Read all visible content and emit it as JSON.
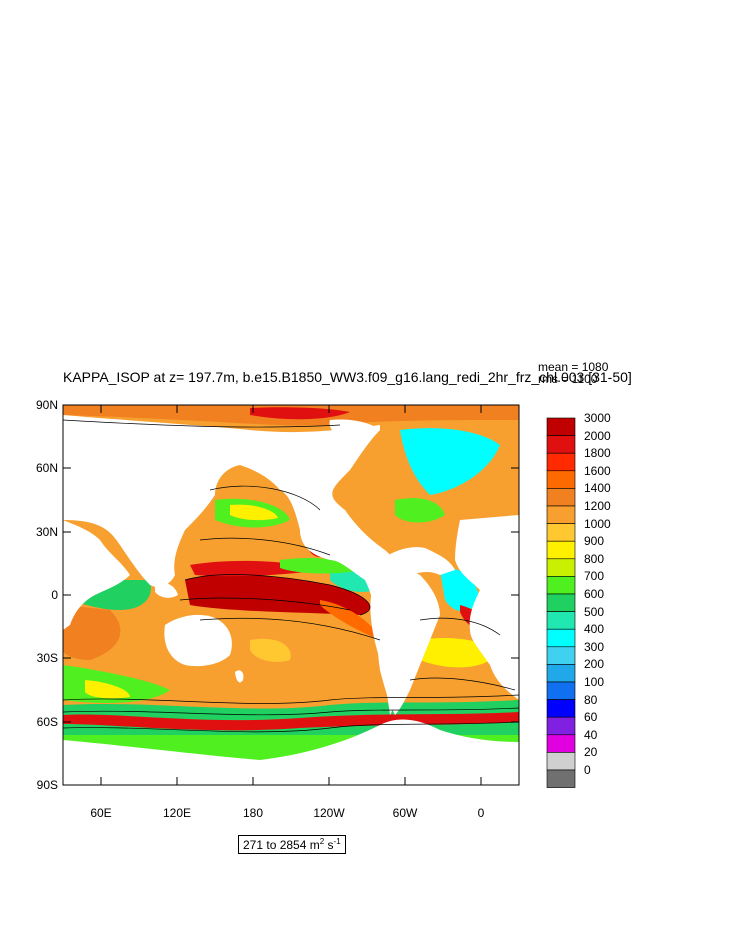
{
  "title": "KAPPA_ISOP at z= 197.7m, b.e15.B1850_WW3.f09_g16.lang_redi_2hr_frz_chl.003 [31-50]",
  "stats": {
    "mean": "mean = 1080",
    "rms": "rms = 1100"
  },
  "range": {
    "text": "271 to 2854 m",
    "unit_sup1": "2",
    "unit_mid": " s",
    "unit_sup2": "-1"
  },
  "axes": {
    "y_ticks": [
      "90N",
      "60N",
      "30N",
      "0",
      "30S",
      "60S",
      "90S"
    ],
    "x_ticks": [
      "60E",
      "120E",
      "180",
      "120W",
      "60W",
      "0"
    ]
  },
  "colorbar": {
    "labels": [
      "3000",
      "2000",
      "1800",
      "1600",
      "1400",
      "1200",
      "1000",
      "900",
      "800",
      "700",
      "600",
      "500",
      "400",
      "300",
      "200",
      "100",
      "80",
      "60",
      "40",
      "20",
      "0"
    ],
    "colors": [
      "#c00000",
      "#e01010",
      "#ff2a00",
      "#ff6a00",
      "#f08020",
      "#f7a030",
      "#ffc830",
      "#fff000",
      "#c8f000",
      "#50f020",
      "#20d060",
      "#20e8b0",
      "#00ffff",
      "#40d0f0",
      "#20a8e8",
      "#1070f0",
      "#0000ff",
      "#8020e0",
      "#e000e0",
      "#d0d0d0",
      "#707070"
    ]
  },
  "colors": {
    "land": "#ffffff",
    "ocean_base": "#f7a030"
  }
}
